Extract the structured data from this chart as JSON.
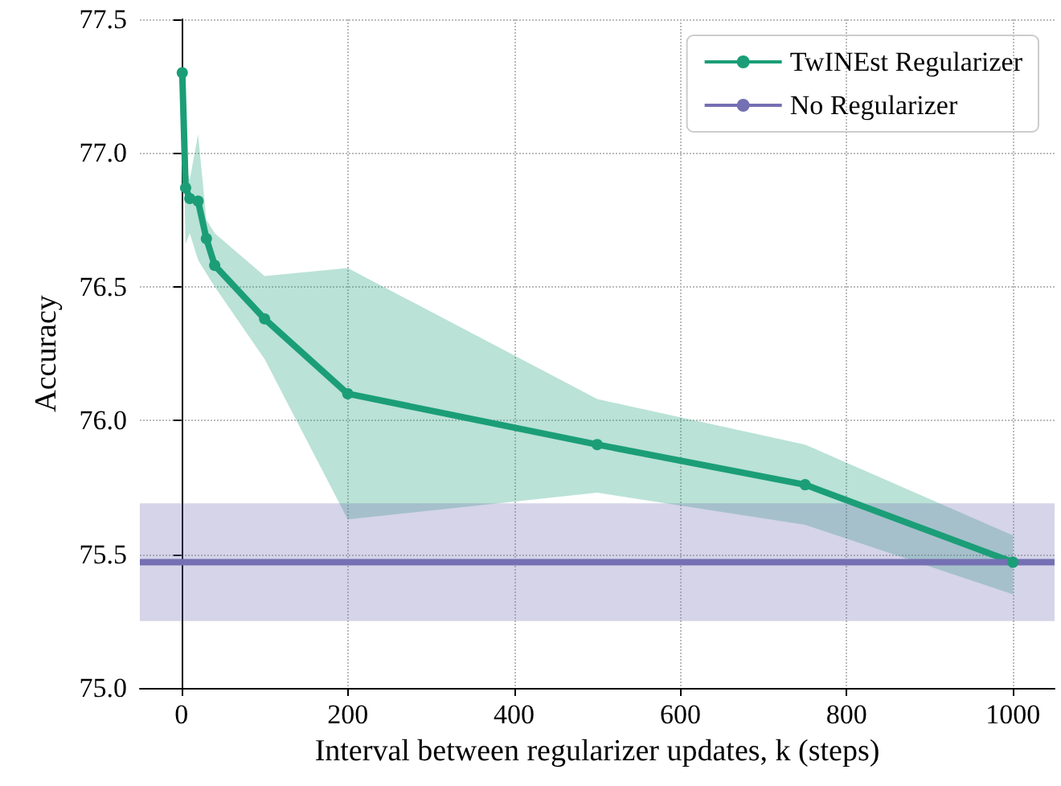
{
  "chart_data": {
    "type": "line",
    "xlabel": "Interval between regularizer updates, k (steps)",
    "ylabel": "Accuracy",
    "xlim": [
      -50,
      1050
    ],
    "xticks": [
      0,
      200,
      400,
      600,
      800,
      1000
    ],
    "ylim": [
      75.0,
      77.5
    ],
    "yticks": [
      {
        "value": 75.0,
        "label": "75.0"
      },
      {
        "value": 75.5,
        "label": "75.5"
      },
      {
        "value": 76.0,
        "label": "76.0"
      },
      {
        "value": 76.5,
        "label": "76.5"
      },
      {
        "value": 77.0,
        "label": "77.0"
      },
      {
        "value": 77.5,
        "label": "77.5"
      }
    ],
    "grid": true,
    "legend": "top right",
    "line_style": "solid",
    "series": [
      {
        "name": "TwINEst Regularizer",
        "color": "#1b9e77",
        "marker": "circle",
        "x": [
          1,
          5,
          10,
          20,
          30,
          40,
          100,
          200,
          500,
          750,
          1000
        ],
        "values": [
          77.3,
          76.87,
          76.83,
          76.82,
          76.68,
          76.58,
          76.38,
          76.1,
          75.91,
          75.76,
          75.47
        ],
        "lower": [
          77.28,
          76.66,
          76.7,
          76.6,
          76.55,
          76.5,
          76.23,
          75.63,
          75.73,
          75.61,
          75.35
        ],
        "upper": [
          77.32,
          76.95,
          76.9,
          77.07,
          76.75,
          76.7,
          76.54,
          76.57,
          76.08,
          75.91,
          75.57
        ]
      },
      {
        "name": "No Regularizer",
        "color": "#7570b3",
        "marker": "none",
        "x": [
          -50,
          1050
        ],
        "values": [
          75.47,
          75.47
        ],
        "lower": [
          75.25,
          75.25
        ],
        "upper": [
          75.69,
          75.69
        ]
      }
    ]
  }
}
